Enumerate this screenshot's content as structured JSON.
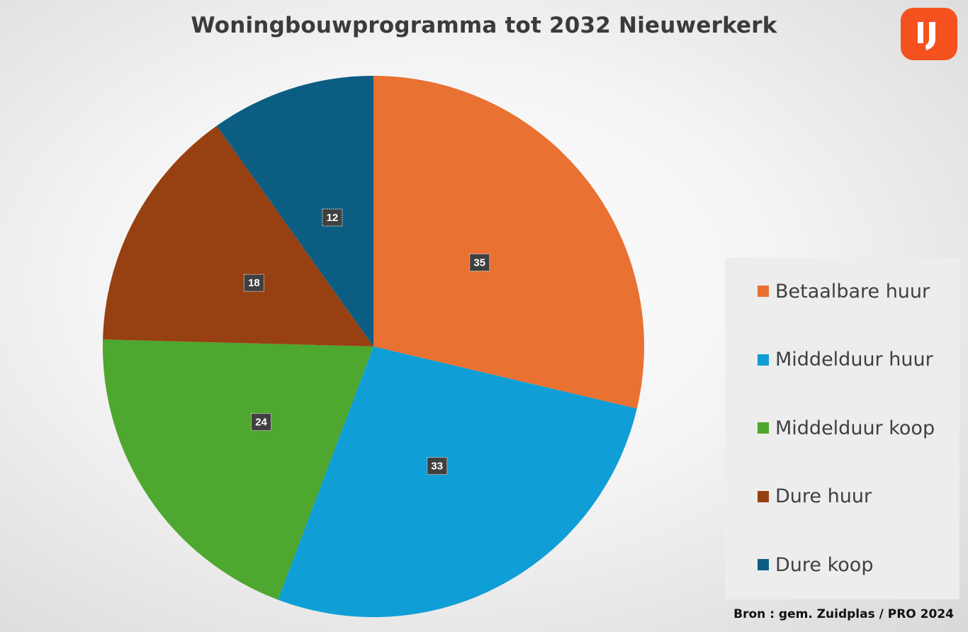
{
  "chart_data": {
    "type": "pie",
    "title": "Woningbouwprogramma tot 2032 Nieuwerkerk",
    "categories": [
      "Betaalbare huur",
      "Middelduur huur",
      "Middelduur koop",
      "Dure huur",
      "Dure koop"
    ],
    "values": [
      35,
      33,
      24,
      18,
      12
    ],
    "colors": [
      "#e97132",
      "#0f9ed5",
      "#4ea72e",
      "#974011",
      "#0b5e82"
    ],
    "legend_position": "right",
    "source": "Bron : gem. Zuidplas / PRO 2024"
  },
  "logo": {
    "icon": "brand-logo-icon",
    "color": "#f4511e"
  }
}
